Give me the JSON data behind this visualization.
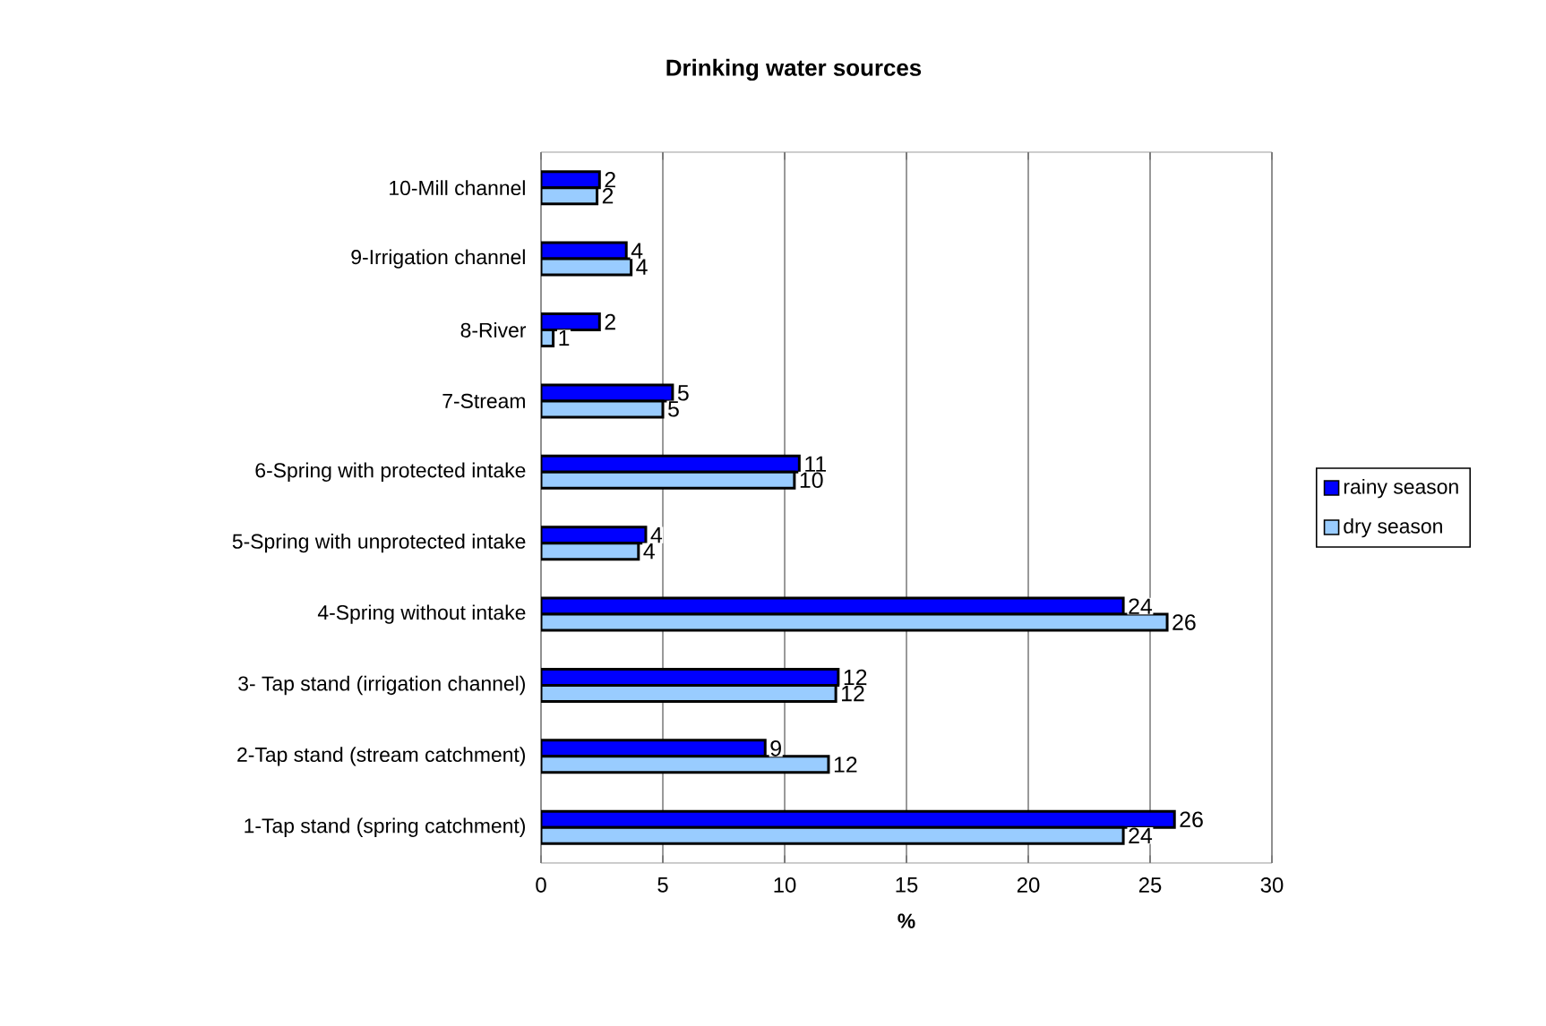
{
  "chart_data": {
    "type": "bar",
    "orientation": "horizontal",
    "title": "Drinking water sources",
    "xlabel": "%",
    "categories": [
      "10-Mill channel",
      "9-Irrigation channel",
      "8-River",
      "7-Stream",
      "6-Spring with protected intake",
      "5-Spring with unprotected intake",
      "4-Spring without intake",
      "3- Tap stand (irrigation channel)",
      "2-Tap stand (stream catchment)",
      "1-Tap stand (spring catchment)"
    ],
    "series": [
      {
        "name": "rainy season",
        "color": "#0000ff",
        "values": [
          2.4,
          3.5,
          2.4,
          5.4,
          10.6,
          4.3,
          23.9,
          12.2,
          9.2,
          26.0
        ],
        "value_labels": [
          "2",
          "4",
          "2",
          "5",
          "11",
          "4",
          "24",
          "12",
          "9",
          "26"
        ]
      },
      {
        "name": "dry season",
        "color": "#99ccff",
        "values": [
          2.3,
          3.7,
          0.5,
          5.0,
          10.4,
          4.0,
          25.7,
          12.1,
          11.8,
          23.9
        ],
        "value_labels": [
          "2",
          "4",
          "1",
          "5",
          "10",
          "4",
          "26",
          "12",
          "12",
          "24"
        ]
      }
    ],
    "xlim": [
      0,
      30
    ],
    "xticks": [
      0,
      5,
      10,
      15,
      20,
      25,
      30
    ],
    "grid": "x",
    "legend": "right"
  }
}
